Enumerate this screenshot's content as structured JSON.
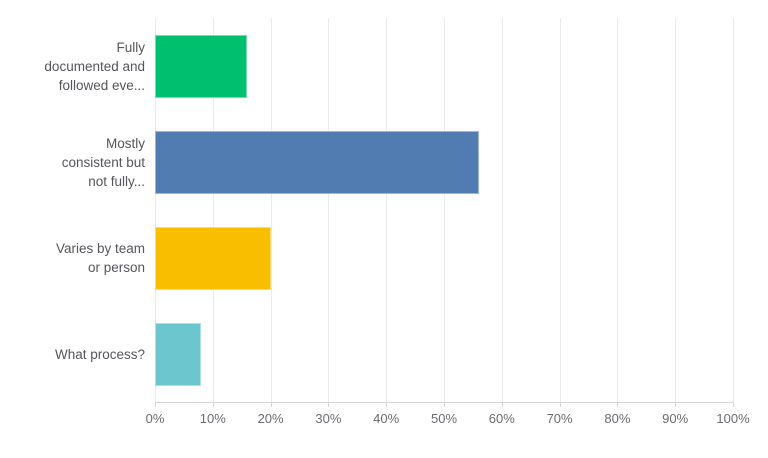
{
  "chart_data": {
    "type": "bar",
    "orientation": "horizontal",
    "title": "",
    "categories": [
      "Fully\ndocumented and\nfollowed eve...",
      "Mostly\nconsistent but\nnot fully...",
      "Varies by team\nor person",
      "What process?"
    ],
    "values": [
      16,
      56,
      20,
      8
    ],
    "value_unit": "%",
    "colors": [
      "#00bf6f",
      "#507cb2",
      "#f9be00",
      "#6bc6cd"
    ],
    "x_tick_labels": [
      "0%",
      "10%",
      "20%",
      "30%",
      "40%",
      "50%",
      "60%",
      "70%",
      "80%",
      "90%",
      "100%"
    ],
    "xlim": [
      0,
      100
    ],
    "grid": "vertical-only",
    "legend": "none",
    "style": {
      "grid_color": "#eaeaea",
      "axis_line_color": "#d6d6d6",
      "tick_label_color": "#696b70",
      "category_label_color": "#54565b",
      "background": "#ffffff"
    }
  }
}
